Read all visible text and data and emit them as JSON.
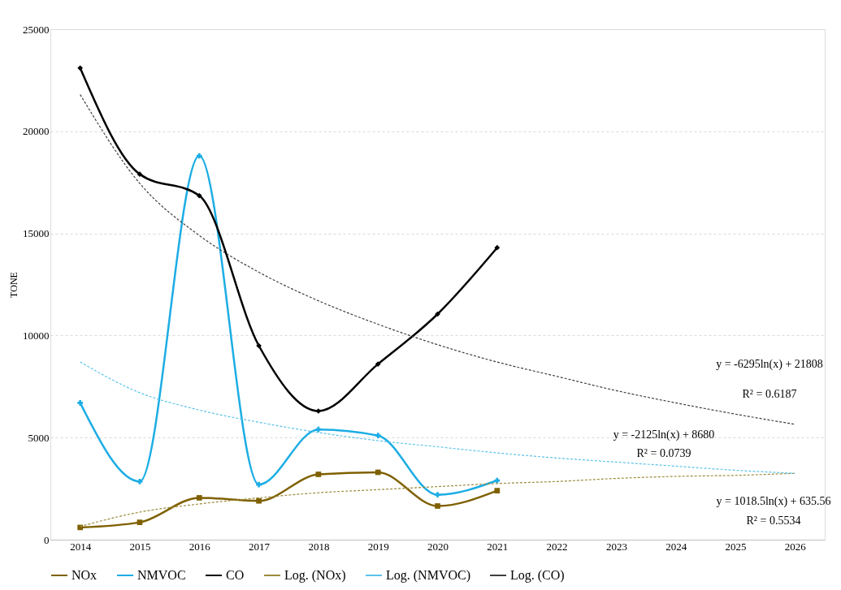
{
  "chart_data": {
    "type": "line",
    "ylabel": "TONE",
    "categories": [
      "2014",
      "2015",
      "2016",
      "2017",
      "2018",
      "2019",
      "2020",
      "2021",
      "2022",
      "2023",
      "2024",
      "2025",
      "2026"
    ],
    "ylim": [
      0,
      25000
    ],
    "yticks": [
      0,
      5000,
      10000,
      15000,
      20000,
      25000
    ],
    "grid": "y",
    "legend": "bottom",
    "series": [
      {
        "name": "NOx",
        "color": "#7f6000",
        "marker": "square",
        "line_style": "solid",
        "values": [
          600,
          850,
          2050,
          1900,
          3200,
          3300,
          1650,
          2400,
          null,
          null,
          null,
          null,
          null
        ]
      },
      {
        "name": "NMVOC",
        "color": "#1cade4",
        "marker": "cross",
        "line_style": "solid",
        "values": [
          6700,
          2850,
          18800,
          2700,
          5400,
          5100,
          2200,
          2900,
          null,
          null,
          null,
          null,
          null
        ]
      },
      {
        "name": "CO",
        "color": "#000000",
        "marker": "diamond",
        "line_style": "solid",
        "values": [
          23100,
          17900,
          16850,
          9500,
          6300,
          8600,
          11050,
          14300,
          null,
          null,
          null,
          null,
          null
        ]
      },
      {
        "name": "Log. (NOx)",
        "color": "#9c8b3c",
        "marker": "none",
        "line_style": "dashed",
        "values": [
          650,
          1350,
          1750,
          2050,
          2300,
          2450,
          2600,
          2750,
          2850,
          3000,
          3100,
          3150,
          3250
        ]
      },
      {
        "name": "Log. (NMVOC)",
        "color": "#5cc3ea",
        "marker": "none",
        "line_style": "dashed",
        "values": [
          8700,
          7200,
          6350,
          5750,
          5250,
          4850,
          4550,
          4250,
          4000,
          3800,
          3600,
          3400,
          3250
        ]
      },
      {
        "name": "Log. (CO)",
        "color": "#404040",
        "marker": "none",
        "line_style": "dashed",
        "values": [
          21800,
          17450,
          14900,
          13100,
          11700,
          10550,
          9550,
          8700,
          8000,
          7300,
          6700,
          6150,
          5650
        ]
      }
    ],
    "annotations": [
      "y = -6295ln(x)  + 21808",
      "R² = 0.6187",
      "y = -2125ln(x)  + 8680",
      "R² = 0.0739",
      "y = 1018.5ln(x) + 635.56",
      "R² = 0.5534"
    ]
  }
}
